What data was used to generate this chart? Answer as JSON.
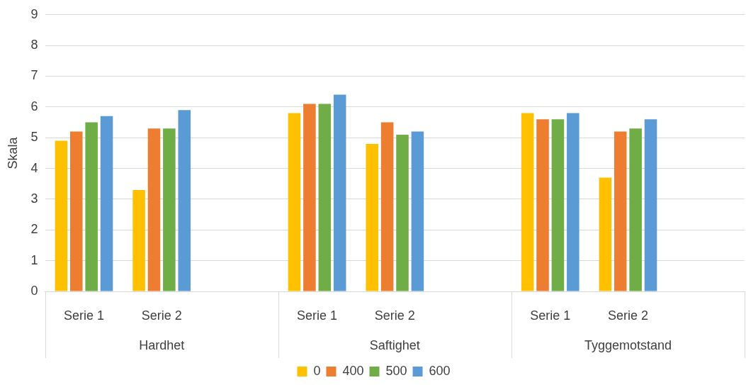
{
  "chart_data": {
    "type": "bar",
    "ylabel": "Skala",
    "categories": [
      "Serie 1",
      "Serie 2",
      null,
      "Serie 1",
      "Serie 2",
      null,
      "Serie 1",
      "Serie 2",
      null
    ],
    "series": [
      {
        "name": "0",
        "color": "#ffc000",
        "values": [
          4.9,
          3.3,
          null,
          5.8,
          4.8,
          null,
          5.8,
          3.7,
          null
        ]
      },
      {
        "name": "400",
        "color": "#ed7d31",
        "values": [
          5.2,
          5.3,
          null,
          6.1,
          5.5,
          null,
          5.6,
          5.2,
          null
        ]
      },
      {
        "name": "500",
        "color": "#70ad47",
        "values": [
          5.5,
          5.3,
          null,
          6.1,
          5.1,
          null,
          5.6,
          5.3,
          null
        ]
      },
      {
        "name": "600",
        "color": "#5b9bd5",
        "values": [
          5.7,
          5.9,
          null,
          6.4,
          5.2,
          null,
          5.8,
          5.6,
          null
        ]
      }
    ],
    "annotations": [
      "Hardhet",
      "Saftighet",
      "Tyggemotstand"
    ],
    "ylim": [
      0,
      9
    ],
    "yticks": [
      0,
      1,
      2,
      3,
      4,
      5,
      6,
      7,
      8,
      9
    ],
    "grid": "y",
    "legend": "bottom"
  }
}
